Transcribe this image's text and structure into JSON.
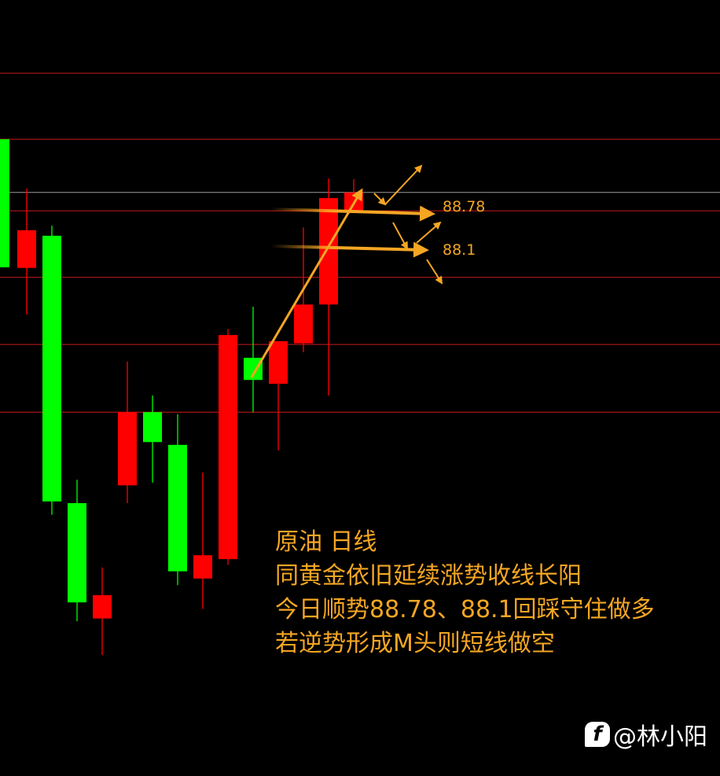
{
  "chart_data": {
    "type": "candlestick",
    "title": "原油 日线",
    "ylim": [
      78.59,
      92.58
    ],
    "grid": false,
    "colors": {
      "up": "#ff0000",
      "down": "#00ff00",
      "level_line": "#cc1a1a",
      "ref_line": "#9a9a9a",
      "annotation": "#f5a623"
    },
    "candles": [
      {
        "open": 90.07,
        "close": 87.76,
        "high": 90.07,
        "low": 87.76
      },
      {
        "open": 87.75,
        "close": 88.43,
        "high": 89.18,
        "low": 86.91
      },
      {
        "open": 88.33,
        "close": 83.54,
        "high": 88.51,
        "low": 83.3
      },
      {
        "open": 83.51,
        "close": 81.72,
        "high": 83.93,
        "low": 81.38
      },
      {
        "open": 81.43,
        "close": 81.85,
        "high": 82.35,
        "low": 80.77
      },
      {
        "open": 83.83,
        "close": 85.15,
        "high": 86.06,
        "low": 83.51
      },
      {
        "open": 85.15,
        "close": 84.61,
        "high": 85.45,
        "low": 83.88
      },
      {
        "open": 84.56,
        "close": 82.28,
        "high": 85.11,
        "low": 82.03
      },
      {
        "open": 82.15,
        "close": 82.57,
        "high": 84.06,
        "low": 81.6
      },
      {
        "open": 82.5,
        "close": 86.54,
        "high": 86.65,
        "low": 82.4
      },
      {
        "open": 86.13,
        "close": 85.73,
        "high": 87.05,
        "low": 85.15
      },
      {
        "open": 85.66,
        "close": 86.43,
        "high": 86.43,
        "low": 84.46
      },
      {
        "open": 86.39,
        "close": 87.09,
        "high": 88.48,
        "low": 86.23
      },
      {
        "open": 87.09,
        "close": 89.01,
        "high": 89.36,
        "low": 85.45
      },
      {
        "open": 88.78,
        "close": 89.11,
        "high": 89.35,
        "low": 88.78
      }
    ],
    "level_lines": [
      91.26,
      90.07,
      88.78,
      87.58,
      86.37,
      85.15
    ],
    "ref_line": 89.11,
    "annotations": [
      {
        "text": "88.78",
        "price": 88.78
      },
      {
        "text": "88.1",
        "price": 88.1
      }
    ]
  },
  "note": {
    "lines": [
      "原油 日线",
      "同黄金依旧延续涨势收线长阳",
      "今日顺势88.78、88.1回踩守住做多",
      "若逆势形成M头则短线做空"
    ]
  },
  "watermark": {
    "icon": "facebook-icon",
    "text": "@林小阳"
  }
}
